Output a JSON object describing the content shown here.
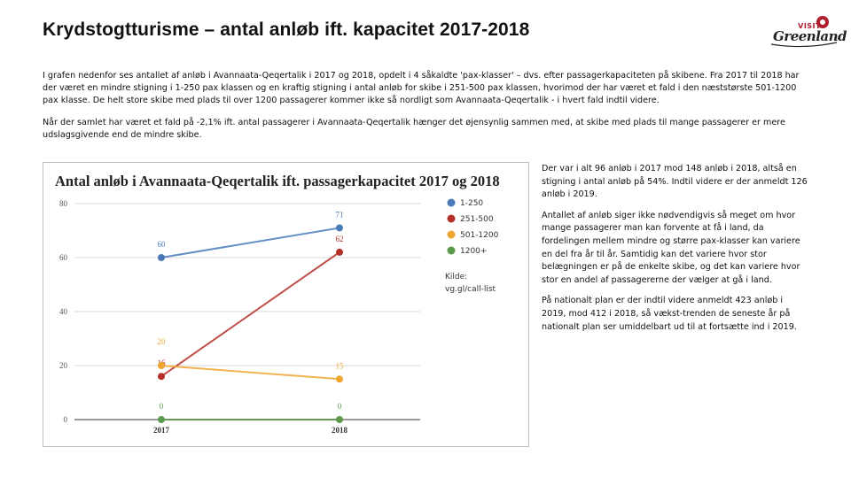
{
  "header": {
    "title": "Krydstogtturisme – antal anløb ift. kapacitet 2017-2018",
    "logo_top": "VISIT",
    "logo_script": "Greenland"
  },
  "intro": {
    "p1": "I grafen nedenfor ses antallet af anløb i Avannaata-Qeqertalik i 2017 og 2018, opdelt i 4 såkaldte 'pax-klasser' – dvs. efter passagerkapaciteten på skibene. Fra 2017 til 2018 har der været en mindre stigning i 1-250 pax klassen og en kraftig stigning i antal anløb for skibe i 251-500 pax klassen, hvorimod der har været et fald i den næststørste 501-1200 pax klasse. De helt store skibe med plads til over 1200 passagerer kommer ikke så nordligt som Avannaata-Qeqertalik - i hvert fald indtil videre.",
    "p2": "Når der samlet har været et fald på -2,1% ift. antal passagerer i Avannaata-Qeqertalik hænger det øjensynlig sammen med, at skibe med plads til mange passagerer er mere udslagsgivende end de mindre skibe."
  },
  "side": {
    "p1": "Der var i alt 96 anløb i 2017 mod 148 anløb i 2018, altså en stigning i antal anløb på 54%. Indtil videre er der anmeldt 126 anløb i 2019.",
    "p2": "Antallet af anløb siger ikke nødvendigvis så meget om hvor mange passagerer man kan forvente at få i land, da fordelingen mellem mindre og større pax-klasser kan variere en del fra år til år. Samtidig kan det variere hvor stor belægningen er på de enkelte skibe, og det kan variere hvor stor en andel af passagererne der vælger at gå i land.",
    "p3": "På nationalt plan er der indtil videre anmeldt 423 anløb i 2019, mod 412 i 2018, så vækst-trenden de seneste år på nationalt plan ser umiddelbart ud til at fortsætte ind i 2019."
  },
  "chart_data": {
    "type": "line",
    "title": "Antal anløb i Avannaata-Qeqertalik ift. passagerkapacitet 2017 og 2018",
    "categories": [
      "2017",
      "2018"
    ],
    "ylim": [
      0,
      80
    ],
    "yticks": [
      0,
      20,
      40,
      60,
      80
    ],
    "series": [
      {
        "name": "1-250",
        "color": "#4a7ab8",
        "values": [
          60,
          71
        ]
      },
      {
        "name": "251-500",
        "color": "#b5302a",
        "values": [
          16,
          62
        ]
      },
      {
        "name": "501-1200",
        "color": "#f0a530",
        "values": [
          20,
          15
        ]
      },
      {
        "name": "1200+",
        "color": "#5b9a4a",
        "values": [
          0,
          0
        ]
      }
    ],
    "source_label": "Kilde:",
    "source": "vg.gl/call-list"
  }
}
